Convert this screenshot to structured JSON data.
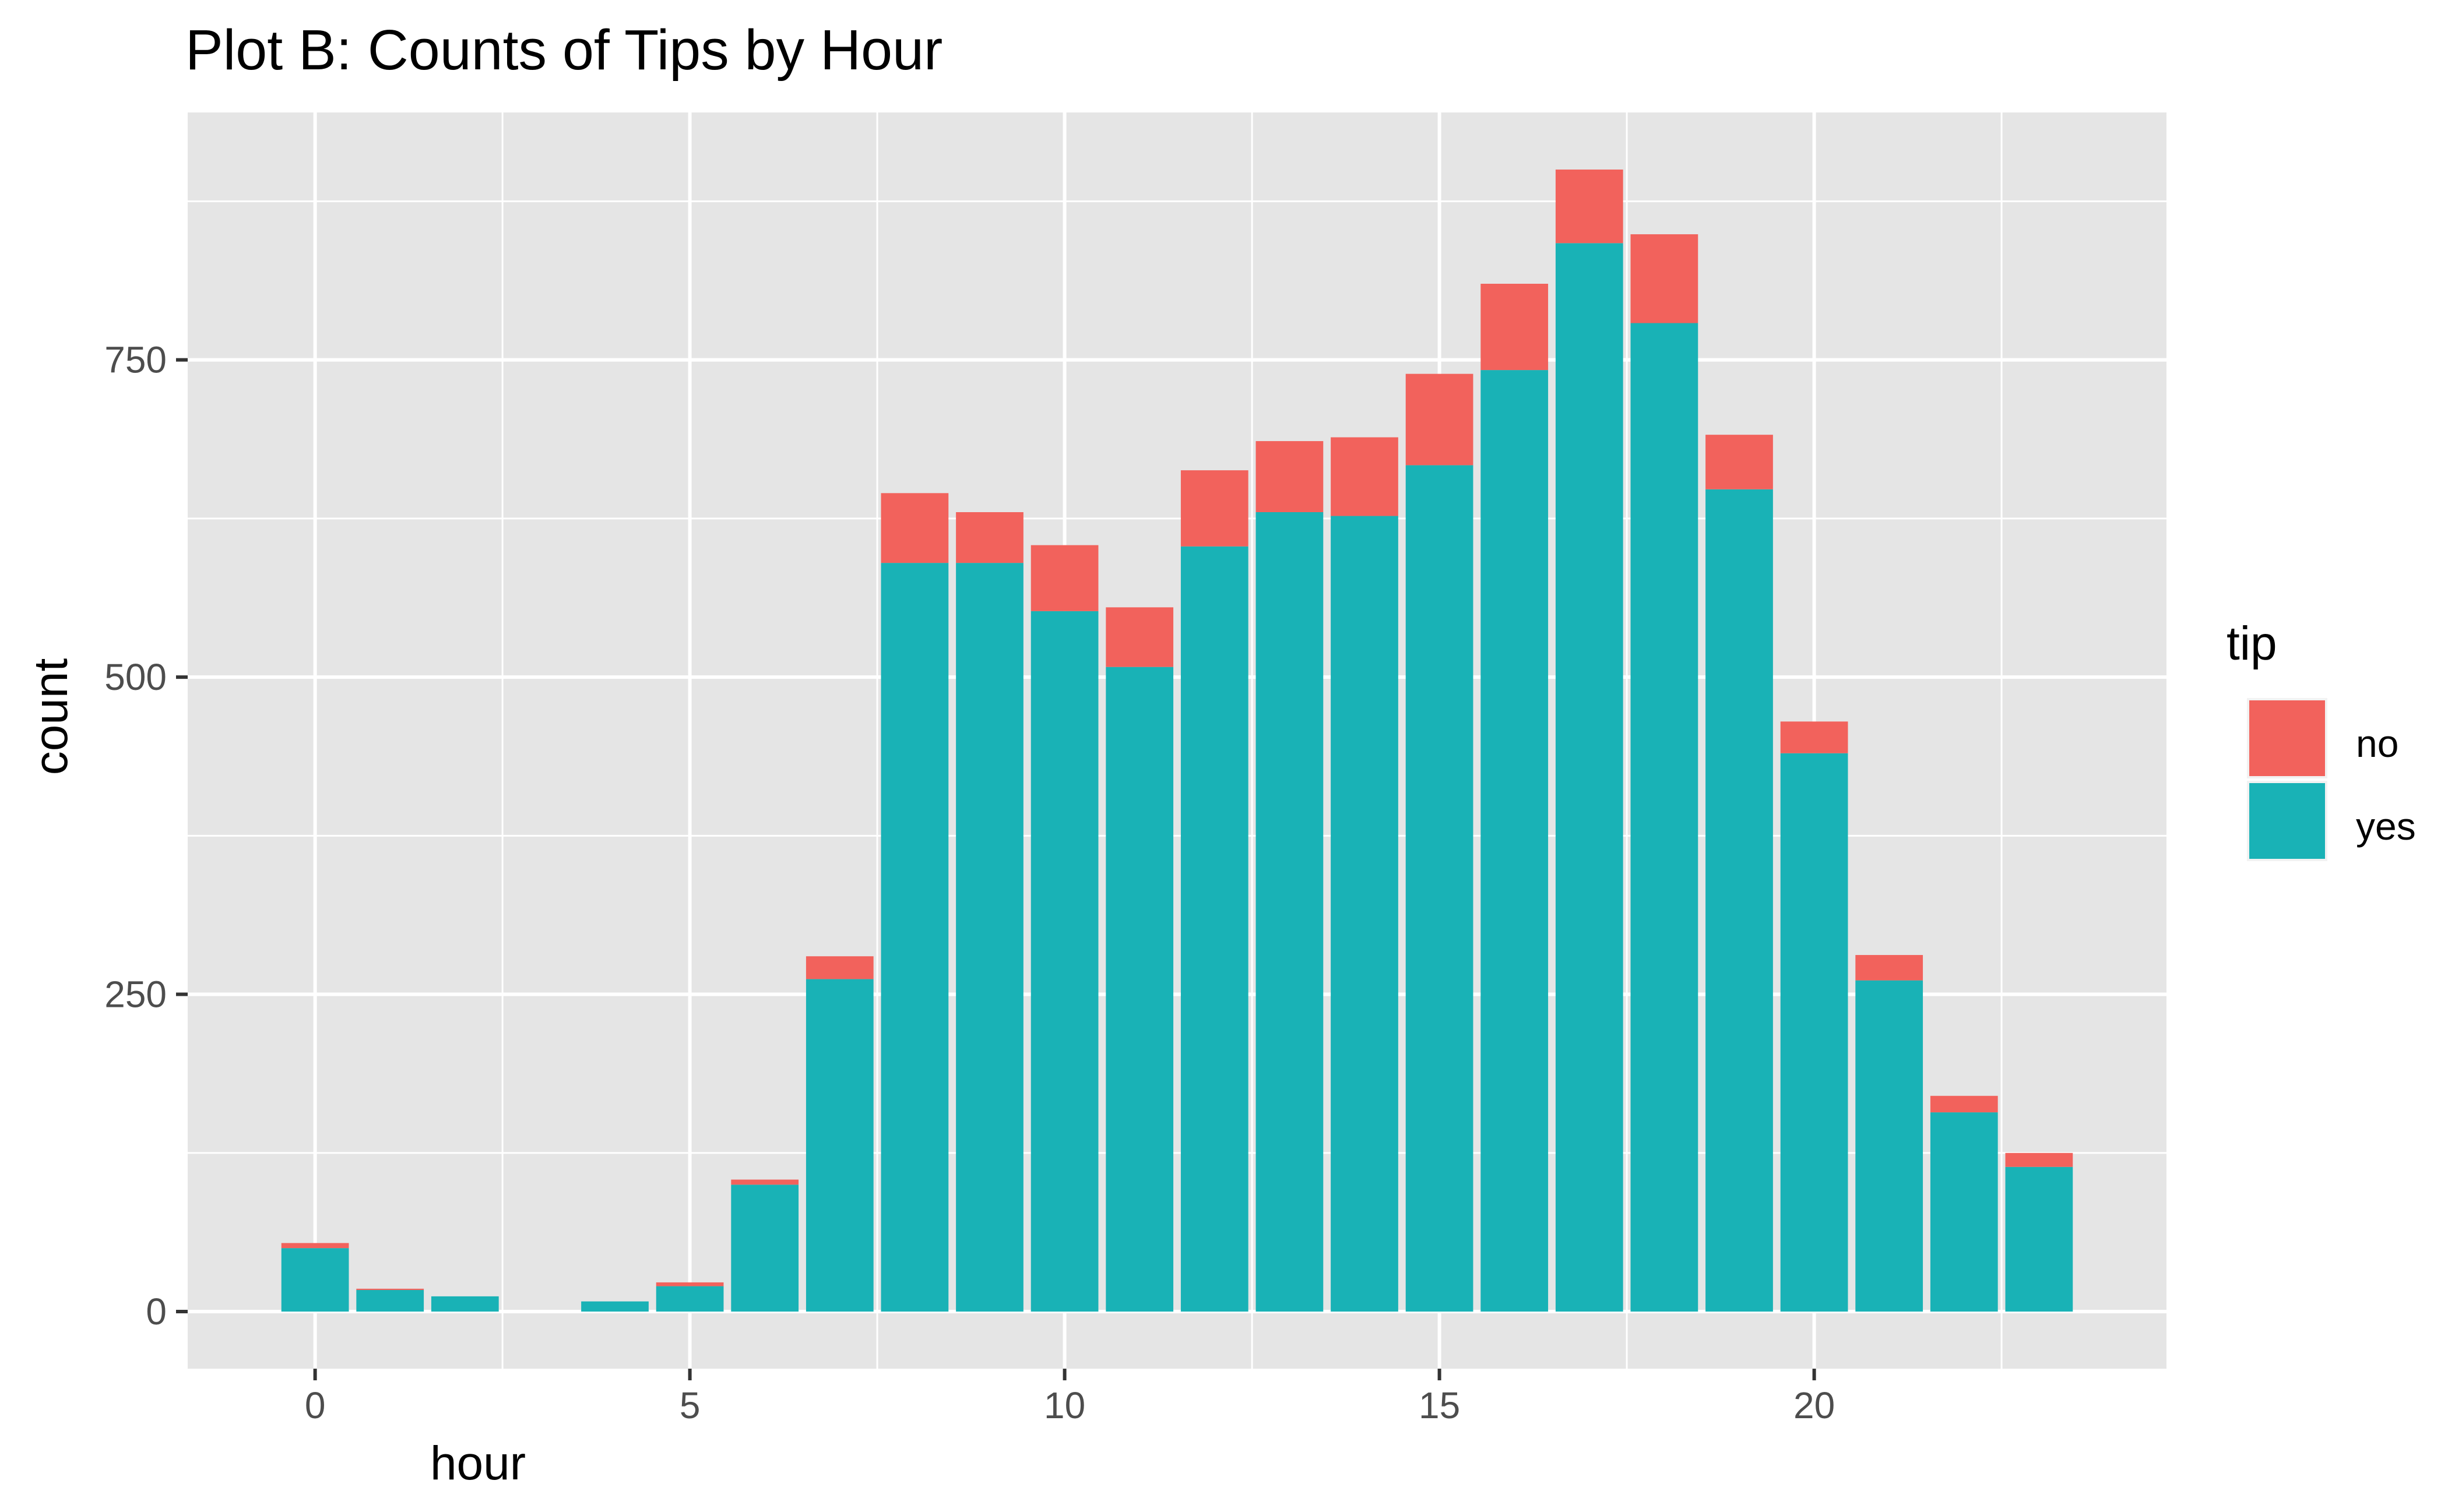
{
  "chart_data": {
    "type": "bar",
    "stacked": true,
    "title": "Plot B: Counts of Tips by Hour",
    "xlabel": "hour",
    "ylabel": "count",
    "x": [
      0,
      1,
      2,
      4,
      5,
      6,
      7,
      8,
      9,
      10,
      11,
      12,
      13,
      14,
      15,
      16,
      17,
      18,
      19,
      20,
      21,
      22,
      23
    ],
    "series": [
      {
        "name": "yes",
        "color": "#19b2b6",
        "values": [
          50,
          17,
          12,
          8,
          20,
          100,
          262,
          590,
          590,
          552,
          508,
          603,
          630,
          627,
          667,
          742,
          842,
          779,
          648,
          440,
          261,
          157,
          114
        ]
      },
      {
        "name": "no",
        "color": "#f2625c",
        "values": [
          4,
          1,
          0,
          0,
          3,
          4,
          18,
          55,
          40,
          52,
          47,
          60,
          56,
          62,
          72,
          68,
          58,
          70,
          43,
          25,
          20,
          13,
          11
        ]
      }
    ],
    "xlim": [
      -1.7,
      24.7
    ],
    "ylim": [
      -45,
      945
    ],
    "x_ticks": [
      0,
      5,
      10,
      15,
      20
    ],
    "y_ticks": [
      0,
      250,
      500,
      750
    ],
    "grid": true,
    "legend": {
      "title": "tip",
      "entries": [
        "no",
        "yes"
      ],
      "position": "right"
    },
    "colors": {
      "panel": "#e5e5e5",
      "grid": "#ffffff",
      "text": "#4d4d4d"
    }
  }
}
